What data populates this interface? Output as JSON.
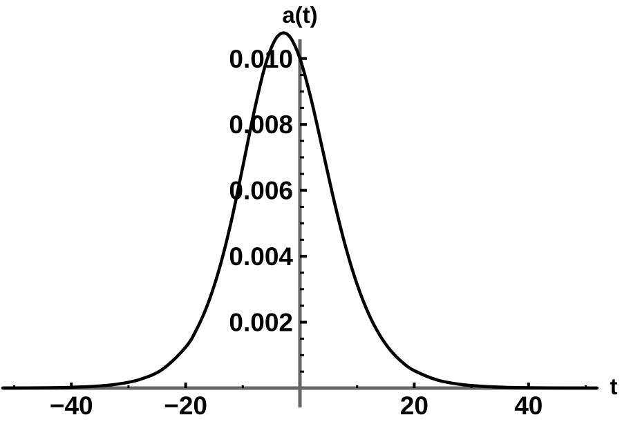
{
  "chart_data": {
    "type": "line",
    "title": "",
    "xlabel": "t",
    "ylabel": "a(t)",
    "xlim": [
      -52,
      52
    ],
    "ylim": [
      0,
      0.0101
    ],
    "x_ticks": [
      {
        "value": -40,
        "label": "−40"
      },
      {
        "value": -20,
        "label": "−20"
      },
      {
        "value": 20,
        "label": "20"
      },
      {
        "value": 40,
        "label": "40"
      }
    ],
    "y_ticks": [
      {
        "value": 0.002,
        "label": "0.002"
      },
      {
        "value": 0.004,
        "label": "0.004"
      },
      {
        "value": 0.006,
        "label": "0.006"
      },
      {
        "value": 0.008,
        "label": "0.008"
      },
      {
        "value": 0.01,
        "label": "0.010"
      }
    ],
    "series": [
      {
        "color": "#000000",
        "x": [
          -52,
          -48,
          -44,
          -40,
          -36,
          -32,
          -28,
          -24,
          -20,
          -18,
          -16,
          -14,
          -12,
          -10,
          -8,
          -6,
          -4,
          -2,
          0,
          2,
          4,
          6,
          8,
          10,
          12,
          14,
          16,
          18,
          20,
          24,
          28,
          32,
          36,
          40,
          44,
          48,
          52
        ],
        "y": [
          2.2e-06,
          4.9e-06,
          1.09e-05,
          2.42e-05,
          5.37e-05,
          0.0001189,
          0.0002627,
          0.0005765,
          0.0012402,
          0.0018089,
          0.0026067,
          0.0036868,
          0.005073,
          0.0067197,
          0.0084022,
          0.0098311,
          0.0106547,
          0.0107063,
          0.01,
          0.0087367,
          0.0072064,
          0.0056624,
          0.0042836,
          0.0031482,
          0.002262,
          0.0015973,
          0.0011144,
          0.000771,
          0.0005303,
          0.0002472,
          0.0001145,
          5.29e-05,
          2.44e-05,
          1.13e-05,
          5.2e-06,
          2.4e-06,
          1.1e-06
        ]
      }
    ],
    "grid": false,
    "axis_color": "#666666"
  }
}
